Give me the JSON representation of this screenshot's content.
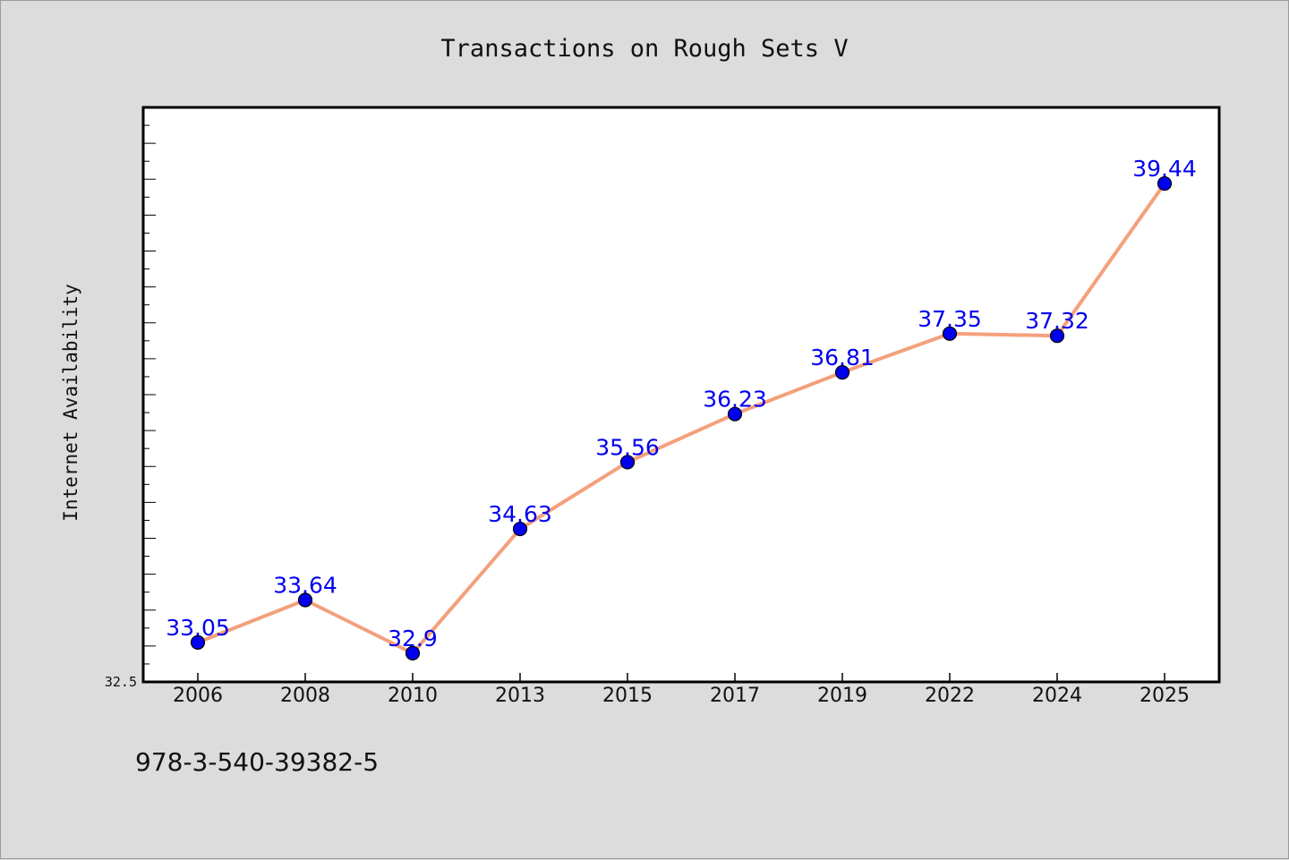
{
  "chart_data": {
    "type": "line",
    "title": "Transactions on Rough Sets V",
    "xlabel": "",
    "ylabel": "Internet Availability",
    "categories": [
      "2006",
      "2008",
      "2010",
      "2013",
      "2015",
      "2017",
      "2019",
      "2022",
      "2024",
      "2025"
    ],
    "series": [
      {
        "values": [
          33.05,
          33.64,
          32.9,
          34.63,
          35.56,
          36.23,
          36.81,
          37.35,
          37.32,
          39.44
        ],
        "labels": [
          "33.05",
          "33.64",
          "32.9",
          "34.63",
          "35.56",
          "36.23",
          "36.81",
          "37.35",
          "37.32",
          "39.44"
        ],
        "line_color": "#f4a07c",
        "marker_color": "#0000ee",
        "label_color": "#0000ee"
      }
    ],
    "ylim": [
      32.5,
      40.5
    ],
    "y_tick_labels": [
      "32.5"
    ],
    "grid": false,
    "legend": "none",
    "background": "#ffffff",
    "page_background": "#dcdcdc"
  },
  "footer_text": "978-3-540-39382-5"
}
